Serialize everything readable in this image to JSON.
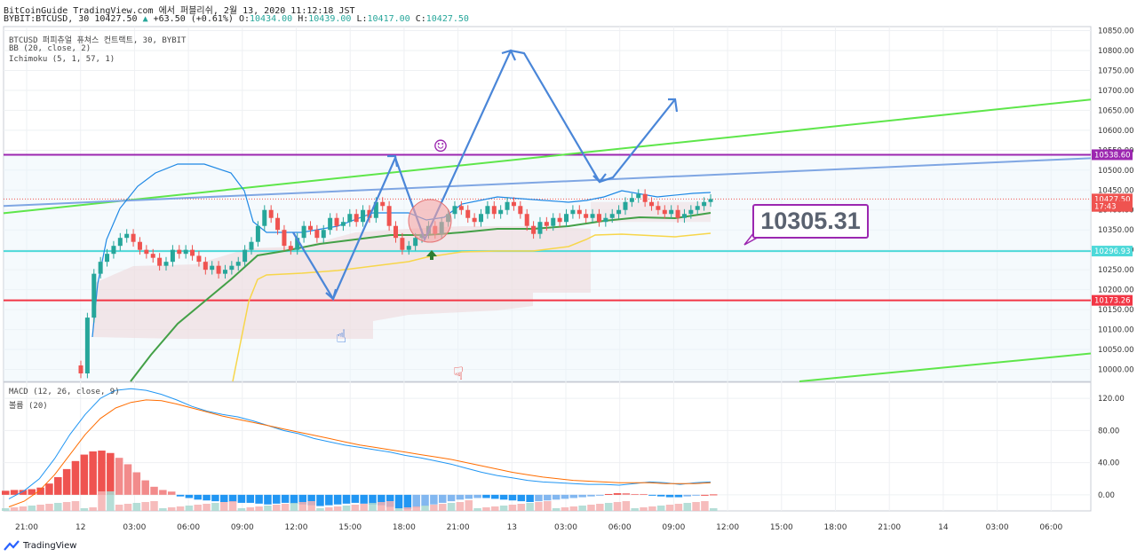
{
  "header": {
    "line1": "BitCoinGuide TradingView.com 에서 퍼블리쉬, 2월 13, 2020 11:12:18 JST",
    "symbol": "BYBIT:BTCUSD, 30",
    "last": "10427.50",
    "change": "+63.50 (+0.61%)",
    "o_label": "O:",
    "o": "10434.00",
    "h_label": "H:",
    "h": "10439.00",
    "l_label": "L:",
    "l": "10417.00",
    "c_label": "C:",
    "c": "10427.50"
  },
  "legend": {
    "main": "BTCUSD 퍼피츄얼 퓨쳐스 컨트랙트, 30, BYBIT",
    "bb": "BB (20, close, 2)",
    "ichimoku": "Ichimoku (5, 1, 57, 1)",
    "macd": "MACD (12, 26, close, 9)",
    "vol": "볼륨 (20)"
  },
  "annotation": {
    "price_label": "10305.31"
  },
  "brand": {
    "name": "TradingView"
  },
  "colors": {
    "up": "#26a69a",
    "down": "#ef5350",
    "purple": "#9c27b0",
    "cyan": "#4dd9d9",
    "red": "#f23645",
    "green_trend": "#5ee64a",
    "blue_trend": "#7fa6e3",
    "arrow": "#4a86d8",
    "bb": "#1e88e5",
    "ma": "#43a047",
    "ich": "#f7d64a",
    "cloud": "#f5c6c6"
  },
  "chart_data": [
    {
      "type": "candlestick",
      "ylim": [
        9970,
        10860
      ],
      "y_ticks": [
        10000,
        10050,
        10100,
        10150,
        10200,
        10250,
        10300,
        10350,
        10400,
        10450,
        10500,
        10550,
        10600,
        10650,
        10700,
        10750,
        10800,
        10850
      ],
      "x_ticks": [
        "21:00",
        "12",
        "03:00",
        "06:00",
        "09:00",
        "12:00",
        "15:00",
        "18:00",
        "21:00",
        "13",
        "03:00",
        "06:00",
        "09:00",
        "12:00",
        "15:00",
        "18:00",
        "21:00",
        "14",
        "03:00",
        "06:00"
      ],
      "price_labels": [
        {
          "value": 10538.6,
          "text": "10538.60",
          "color": "#9c27b0"
        },
        {
          "value": 10427.5,
          "text": "10427.50",
          "color": "#ef5350"
        },
        {
          "value": 10409,
          "text": "17:43",
          "color": "#ef5350"
        },
        {
          "value": 10296.93,
          "text": "10296.93",
          "color": "#4dd9d9"
        },
        {
          "value": 10173.26,
          "text": "10173.26",
          "color": "#f23645"
        }
      ],
      "horizontal_lines": [
        {
          "value": 10538.6,
          "color": "#9c27b0"
        },
        {
          "value": 10296.93,
          "color": "#4dd9d9"
        },
        {
          "value": 10173.26,
          "color": "#f23645"
        }
      ],
      "closes": [
        9990,
        10130,
        10240,
        10270,
        10290,
        10310,
        10330,
        10340,
        10320,
        10300,
        10290,
        10280,
        10260,
        10270,
        10300,
        10290,
        10300,
        10285,
        10270,
        10250,
        10260,
        10240,
        10250,
        10260,
        10270,
        10300,
        10320,
        10360,
        10400,
        10380,
        10350,
        10310,
        10300,
        10330,
        10360,
        10350,
        10330,
        10350,
        10380,
        10360,
        10370,
        10390,
        10370,
        10400,
        10380,
        10420,
        10410,
        10360,
        10330,
        10300,
        10310,
        10330,
        10340,
        10360,
        10340,
        10370,
        10390,
        10410,
        10400,
        10380,
        10370,
        10390,
        10410,
        10390,
        10400,
        10420,
        10410,
        10390,
        10360,
        10340,
        10370,
        10360,
        10380,
        10370,
        10390,
        10400,
        10390,
        10380,
        10390,
        10370,
        10380,
        10390,
        10400,
        10420,
        10430,
        10440,
        10420,
        10410,
        10400,
        10390,
        10400,
        10380,
        10390,
        10400,
        10410,
        10420,
        10427.5
      ]
    },
    {
      "type": "bar",
      "name": "MACD",
      "ylim": [
        -20,
        140
      ],
      "y_ticks": [
        0,
        40,
        80,
        120
      ],
      "histogram": [
        5,
        6,
        6,
        7,
        9,
        14,
        22,
        32,
        42,
        50,
        54,
        55,
        52,
        46,
        38,
        28,
        18,
        10,
        6,
        4,
        -2,
        -4,
        -6,
        -7,
        -8,
        -9,
        -9,
        -10,
        -10,
        -11,
        -12,
        -11,
        -10,
        -11,
        -12,
        -13,
        -14,
        -13,
        -12,
        -11,
        -10,
        -11,
        -12,
        -13,
        -15,
        -17,
        -18,
        -16,
        -14,
        -12,
        -10,
        -8,
        -6,
        -5,
        -4,
        -4,
        -5,
        -6,
        -7,
        -8,
        -9,
        -8,
        -7,
        -6,
        -5,
        -4,
        -3,
        -2,
        -1,
        1,
        2,
        2,
        1,
        1,
        -1,
        -2,
        -3,
        -3,
        -2,
        -1,
        0,
        0.5
      ],
      "macd_line": [
        -5,
        5,
        20,
        45,
        75,
        100,
        120,
        130,
        132,
        130,
        125,
        118,
        110,
        104,
        100,
        97,
        92,
        86,
        80,
        76,
        70,
        66,
        62,
        59,
        56,
        53,
        49,
        46,
        42,
        38,
        33,
        28,
        24,
        21,
        18,
        16,
        15,
        14,
        13,
        13,
        12,
        14,
        16,
        15,
        13,
        15,
        16
      ],
      "signal_line": [
        -15,
        -8,
        5,
        25,
        50,
        75,
        95,
        108,
        115,
        118,
        117,
        113,
        108,
        103,
        98,
        94,
        90,
        86,
        82,
        78,
        74,
        70,
        66,
        62,
        59,
        56,
        53,
        50,
        47,
        44,
        40,
        36,
        32,
        28,
        25,
        22,
        20,
        18,
        17,
        16,
        15,
        15,
        15,
        14,
        14,
        14,
        15
      ]
    }
  ]
}
